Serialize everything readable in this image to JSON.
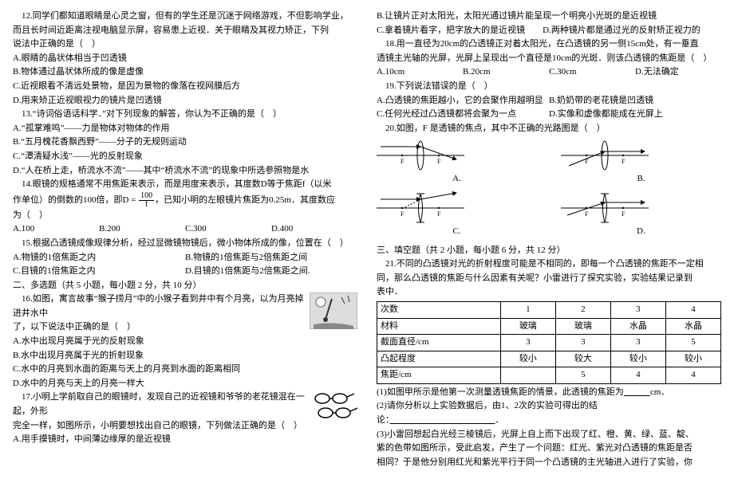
{
  "left": {
    "q12": {
      "stem1": "12.同学们都知道眼睛是心灵之窗，但有的学生还是沉迷于网络游戏，不但影响学业，",
      "stem2": "而且长时间近距离注视电脑显示屏，容易患上近视．关于眼睛及其视力矫正，下列",
      "stem3": "说法中正确的是（　）",
      "A": "A.眼睛的晶状体相当于凹透镜",
      "B": "B.物体通过晶状体所成的像是虚像",
      "C": "C.近视眼看不清远处景物，是因为景物的像落在视网膜后方",
      "D": "D.用来矫正近视眼视力的镜片是凹透镜"
    },
    "q13": {
      "stem": "13.“诗词俗语话科学．”对下列现象的解答，你认为不正确的是（　）",
      "A": "A.“孤掌难鸣”——力是物体对物体的作用",
      "B": "B.“五月槐花香飘西野”——分子的无规则运动",
      "C": "C.“潭清疑水浅”——光的反射现象",
      "D": "D.“人在桥上走，桥流水不流”——其中“桥流水不流”的现象中所选参照物是水"
    },
    "q14": {
      "stem1": "14.眼镜的规格通常不用焦距来表示，而是用度来表示，其度数D等于焦距f（以米",
      "stem2a": "作单位）的倒数的100倍，即D = ",
      "stem2b": "，已知小明的左眼镜片焦距为0.25m．其度数应",
      "frac_num": "100",
      "frac_den": "f",
      "stem3": "为（　）",
      "A": "A.100",
      "B": "B.200",
      "C": "C.300",
      "D": "D.400"
    },
    "q15": {
      "stem": "15.根据凸透镜成像规律分析，经过显微镜物镜后，微小物体所成的像，位置在（　）",
      "A": "A.物镜的1倍焦距之内",
      "B": "B.物镜的1倍焦距与2倍焦距之间",
      "C": "C.目镜的1倍焦距之内",
      "D": "D.目镜的1倍焦距与2倍焦距之间."
    },
    "sec2_title": "二、多选题（共 5 小题，每小题 2 分，共 10 分）",
    "q16": {
      "stem1": "16.如图，寓言故事“猴子捞月”中的小猴子看到井中有个月亮，以为月亮掉进井水中",
      "stem2": "了，以下说法中正确的是（　）",
      "A": "A.水中出现月亮属于光的反射现象",
      "B": "B.水中出现月亮属于光的折射现象",
      "C": "C.水中的月亮到水面的距离与天上的月亮到水面的距离相同",
      "D": "D.水中的月亮与天上的月亮一样大"
    },
    "q17": {
      "stem1": "17.小明上学前取自己的眼镜时，发现自己的近视镜和爷爷的老花镜混在一起，外形",
      "stem2": "完全一样，如图所示，小明要想找出自己的眼镜，下列做法正确的是（　）",
      "A": "A.用手摸镜时，中间薄边缘厚的是近视镜"
    }
  },
  "right": {
    "q17_cont": {
      "B": "B.让镜片正对太阳光，太阳光通过镜片能呈现一个明亮小光斑的是近视镜",
      "C": "C.拿着镜片看字，把字放大的是近视镜",
      "D": "D.两种镜片都是通过光的反射矫正视力的"
    },
    "q18": {
      "stem1": "18.用一直径为20cm的凸透镜正对着太阳光，在凸透镜的另一侧15cm处，有一垂直",
      "stem2": "透镜主光轴的光屏，光屏上呈现出一个直径是10cm的光斑．则该凸透镜的焦距是（　）",
      "A": "A.10cm",
      "B": "B.20cm",
      "C": "C.30cm",
      "D": "D.无法确定"
    },
    "q19": {
      "stem": "19.下列说法错误的是（　）",
      "A": "A.凸透镜的焦距越小，它的会聚作用越明显",
      "B": "B.奶奶带的老花镜是凹透镜",
      "C": "C.任何光经过凸透镜都将会聚为一点",
      "D": "D.实像和虚像都能成在光屏上"
    },
    "q20": {
      "stem": "20.如图，F 是透镜的焦点，其中不正确的光路图是（　）",
      "labels": {
        "A": "A.",
        "B": "B.",
        "C": "C.",
        "D": "D."
      }
    },
    "sec3_title": "三、填空题（共 2 小题，每小题 6 分，共 12 分）",
    "q21": {
      "stem1": "21.不同的凸透镜对光的折射程度可能是不相同的，即每一个凸透镜的焦距不一定相",
      "stem2": "同，那么凸透镜的焦距与什么因素有关呢？小雷进行了探究实验，实验结果记录到",
      "stem3": "表中．",
      "sub1a": "(1)如图甲所示是他第一次测量透镜焦距的情景，此透镜的焦距为",
      "sub1b": "cm．",
      "sub2": "(2)请你分析以上实验数据后，由1、2次的实验可得出的结论：",
      "sub2b": "．",
      "sub3a": "(3)小雷回想起白光经三棱镜后，光屏上自上而下出现了红、橙、黄、绿、蓝、靛、",
      "sub3b": "紫的色带如图所示，受此启发，产生了一个问题：红光、紫光对凸透镜的焦距是否",
      "sub3c": "相同？于是他分别用红光和紫光平行于同一个凸透镜的主光轴进入进行了实验，你"
    },
    "table": {
      "rows": [
        {
          "hdr": "次数",
          "c1": "1",
          "c2": "2",
          "c3": "3",
          "c4": "4"
        },
        {
          "hdr": "材料",
          "c1": "玻璃",
          "c2": "玻璃",
          "c3": "水晶",
          "c4": "水晶"
        },
        {
          "hdr": "截面直径/cm",
          "c1": "3",
          "c2": "3",
          "c3": "3",
          "c4": "5"
        },
        {
          "hdr": "凸起程度",
          "c1": "较小",
          "c2": "较大",
          "c3": "较小",
          "c4": "较小"
        },
        {
          "hdr": "焦距/cm",
          "c1": "",
          "c2": "5",
          "c3": "4",
          "c4": "4"
        }
      ]
    }
  }
}
